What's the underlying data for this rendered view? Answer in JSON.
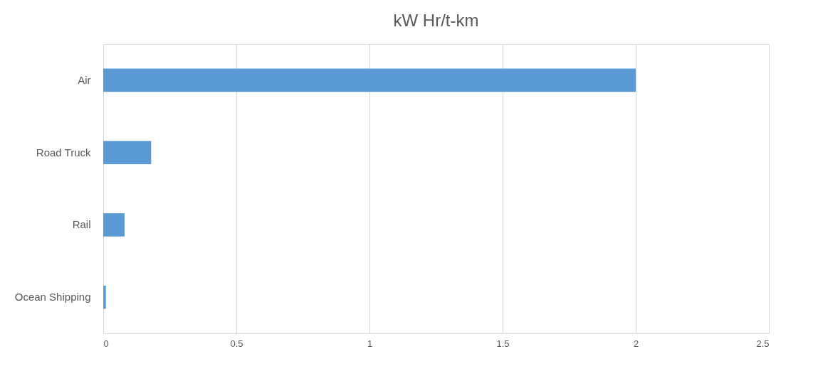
{
  "chart_data": {
    "type": "bar",
    "orientation": "horizontal",
    "title": "kW Hr/t-km",
    "categories": [
      "Air",
      "Road Truck",
      "Rail",
      "Ocean Shipping"
    ],
    "values": [
      2,
      0.18,
      0.08,
      0.01
    ],
    "color": "#5b9bd5",
    "xlim": [
      0,
      2.5
    ],
    "xticks": [
      0,
      0.5,
      1,
      1.5,
      2,
      2.5
    ],
    "grid": "x"
  }
}
